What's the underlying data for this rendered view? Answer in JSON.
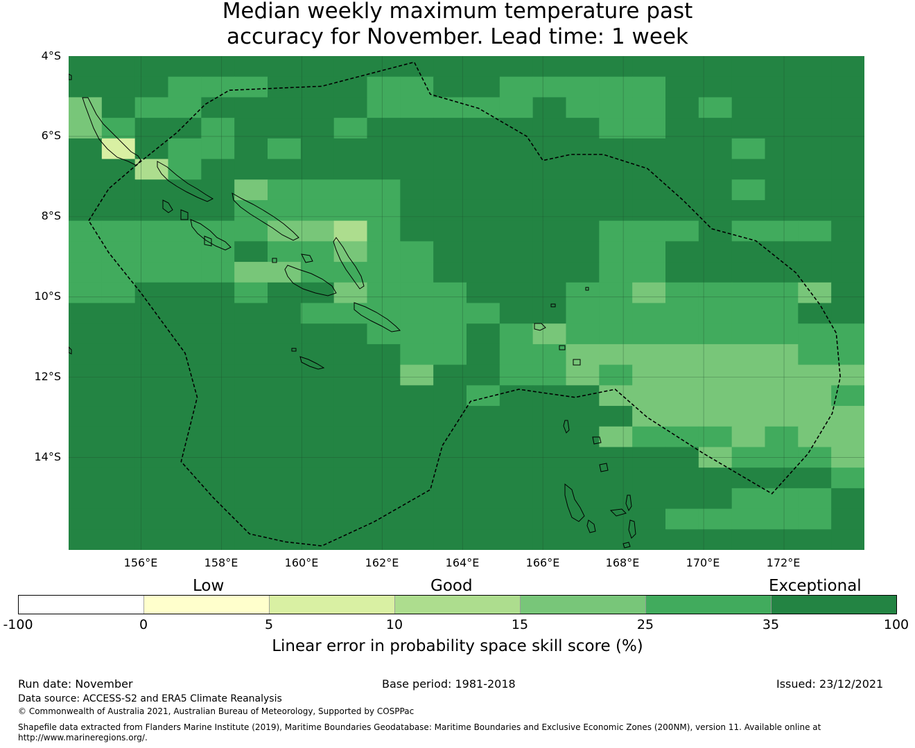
{
  "title_line1": "Median weekly maximum temperature past",
  "title_line2": "accuracy for November. Lead time: 1 week",
  "map": {
    "lat_range": [
      -4,
      -16.3
    ],
    "lon_range": [
      154.2,
      174.0
    ],
    "lat_ticks": [
      {
        "value": -4,
        "label": "4°S"
      },
      {
        "value": -6,
        "label": "6°S"
      },
      {
        "value": -8,
        "label": "8°S"
      },
      {
        "value": -10,
        "label": "10°S"
      },
      {
        "value": -12,
        "label": "12°S"
      },
      {
        "value": -14,
        "label": "14°S"
      }
    ],
    "lon_ticks": [
      {
        "value": 156,
        "label": "156°E"
      },
      {
        "value": 158,
        "label": "158°E"
      },
      {
        "value": 160,
        "label": "160°E"
      },
      {
        "value": 162,
        "label": "162°E"
      },
      {
        "value": 164,
        "label": "164°E"
      },
      {
        "value": 166,
        "label": "166°E"
      },
      {
        "value": 168,
        "label": "168°E"
      },
      {
        "value": 170,
        "label": "170°E"
      },
      {
        "value": 172,
        "label": "172°E"
      }
    ],
    "skill_grid_rows": [
      "666666666666666666666666",
      "666555666556655555666666",
      "465566666555556555656666",
      "456656665666666655666666",
      "626556566666666666665666",
      "663566666666666666666666",
      "666664555566666666665666",
      "666665555566666666666666",
      "555555443566666655565556",
      "555556554556666655666666",
      "555554455556666655666666",
      "556665664555666554555546",
      "666666655555566555555566",
      "666666666555654555555555",
      "666666666655655444444455",
      "666666666646655454444444",
      "666666666666566644444445",
      "666666666666666664444444",
      "666666666666666645554544",
      "666666666666666666645554",
      "666666666666666666666665",
      "666666666666666666665556",
      "666666666666666666555556",
      "666666666666666666666666"
    ],
    "eez_boundary_lonlat": [
      [
        154.7,
        -8.1
      ],
      [
        155.2,
        -7.3
      ],
      [
        155.9,
        -6.7
      ],
      [
        156.9,
        -5.9
      ],
      [
        157.6,
        -5.2
      ],
      [
        158.2,
        -4.85
      ],
      [
        160.5,
        -4.75
      ],
      [
        162.8,
        -4.15
      ],
      [
        163.2,
        -4.95
      ],
      [
        164.4,
        -5.3
      ],
      [
        165.6,
        -6.0
      ],
      [
        166.0,
        -6.6
      ],
      [
        166.7,
        -6.45
      ],
      [
        167.5,
        -6.45
      ],
      [
        168.6,
        -6.8
      ],
      [
        169.5,
        -7.6
      ],
      [
        170.2,
        -8.3
      ],
      [
        171.3,
        -8.6
      ],
      [
        172.3,
        -9.4
      ],
      [
        172.9,
        -10.2
      ],
      [
        173.3,
        -10.9
      ],
      [
        173.4,
        -12.0
      ],
      [
        173.2,
        -12.9
      ],
      [
        172.6,
        -13.9
      ],
      [
        171.7,
        -14.9
      ],
      [
        170.0,
        -13.9
      ],
      [
        168.6,
        -13.0
      ],
      [
        167.8,
        -12.3
      ],
      [
        166.8,
        -12.5
      ],
      [
        165.4,
        -12.3
      ],
      [
        164.2,
        -12.6
      ],
      [
        163.5,
        -13.7
      ],
      [
        163.2,
        -14.8
      ],
      [
        161.8,
        -15.6
      ],
      [
        160.5,
        -16.2
      ],
      [
        159.6,
        -16.1
      ],
      [
        158.7,
        -15.9
      ],
      [
        157.8,
        -15.0
      ],
      [
        157.0,
        -14.1
      ],
      [
        157.4,
        -12.5
      ],
      [
        157.1,
        -11.4
      ],
      [
        156.0,
        -9.9
      ],
      [
        155.2,
        -8.9
      ],
      [
        154.7,
        -8.1
      ]
    ]
  },
  "colorbar": {
    "category_labels": [
      "Low",
      "Good",
      "Exceptional"
    ],
    "segments": [
      {
        "from": -100,
        "to": 0,
        "color": "#ffffff"
      },
      {
        "from": 0,
        "to": 5,
        "color": "#ffffcc"
      },
      {
        "from": 5,
        "to": 10,
        "color": "#d9f0a3"
      },
      {
        "from": 10,
        "to": 15,
        "color": "#addd8e"
      },
      {
        "from": 15,
        "to": 25,
        "color": "#78c679"
      },
      {
        "from": 25,
        "to": 35,
        "color": "#41ab5d"
      },
      {
        "from": 35,
        "to": 100,
        "color": "#238443"
      }
    ],
    "tick_labels": [
      "-100",
      "0",
      "5",
      "10",
      "15",
      "25",
      "35",
      "100"
    ],
    "label": "Linear error in probability space skill score (%)"
  },
  "footer": {
    "run_date": "Run date: November",
    "base_period": "Base period: 1981-2018",
    "issued": "Issued: 23/12/2021",
    "data_source": "Data source: ACCESS-S2 and ERA5 Climate Reanalysis",
    "copyright": "© Commonwealth of Australia 2021, Australian Bureau of Meteorology, Supported by COSPPac",
    "shapefile_note": "Shapefile data extracted from Flanders Marine Institute (2019), Maritime Boundaries Geodatabase: Maritime Boundaries and Exclusive Economic Zones (200NM), version 11. Available online at http://www.marineregions.org/."
  }
}
